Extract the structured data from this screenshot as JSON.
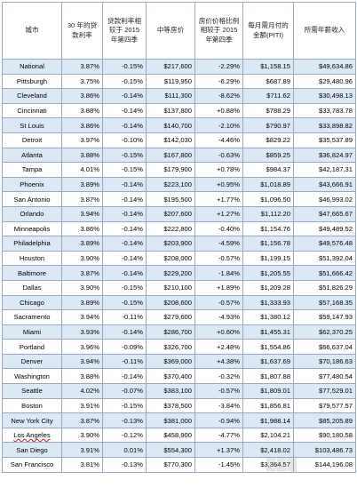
{
  "table": {
    "headers": [
      "城市",
      "30 年的贷款利率",
      "贷款利率相较于 2015 年第四季",
      "中等房价",
      "房价价格比例相较于 2015 年第四季",
      "每月需月付的金额(PITI)",
      "所需年薪收入"
    ],
    "rows": [
      [
        "National",
        "3.87%",
        "-0.15%",
        "$217,600",
        "-2.29%",
        "$1,158.15",
        "$49,634.86"
      ],
      [
        "Pittsburgh",
        "3.75%",
        "-0.15%",
        "$119,950",
        "-6.29%",
        "$687.89",
        "$29,480.96"
      ],
      [
        "Cleveland",
        "3.86%",
        "-0.14%",
        "$111,300",
        "-8.62%",
        "$711.62",
        "$30,498.13"
      ],
      [
        "Cincinnati",
        "3.88%",
        "-0.14%",
        "$137,800",
        "+0.88%",
        "$788.29",
        "$33,783.78"
      ],
      [
        "St Louis",
        "3.86%",
        "-0.14%",
        "$140,700",
        "-2.10%",
        "$790.97",
        "$33,898.82"
      ],
      [
        "Detroit",
        "3.97%",
        "-0.10%",
        "$142,030",
        "-4.46%",
        "$829.22",
        "$35,537.89"
      ],
      [
        "Atlanta",
        "3.88%",
        "-0.15%",
        "$167,800",
        "-0.63%",
        "$859.25",
        "$36,824.97"
      ],
      [
        "Tampa",
        "4.01%",
        "-0.15%",
        "$179,900",
        "+0.78%",
        "$984.37",
        "$42,187.31"
      ],
      [
        "Phoenix",
        "3.89%",
        "-0.14%",
        "$223,100",
        "+0.95%",
        "$1,018.89",
        "$43,666.91"
      ],
      [
        "San Antonio",
        "3.87%",
        "-0.14%",
        "$195,500",
        "+1.77%",
        "$1,096.50",
        "$46,993.02"
      ],
      [
        "Orlando",
        "3.94%",
        "-0.14%",
        "$207,600",
        "+1.27%",
        "$1,112.20",
        "$47,665.67"
      ],
      [
        "Minneapolis",
        "3.86%",
        "-0.14%",
        "$222,800",
        "-0.40%",
        "$1,154.76",
        "$49,489.52"
      ],
      [
        "Philadelphia",
        "3.89%",
        "-0.14%",
        "$203,900",
        "-4.59%",
        "$1,156.78",
        "$49,576.48"
      ],
      [
        "Houston",
        "3.90%",
        "-0.14%",
        "$208,000",
        "-0.57%",
        "$1,199.15",
        "$51,392.04"
      ],
      [
        "Baltimore",
        "3.87%",
        "-0.14%",
        "$229,200",
        "-1.84%",
        "$1,205.55",
        "$51,666.42"
      ],
      [
        "Dallas",
        "3.90%",
        "-0.15%",
        "$210,100",
        "+1.89%",
        "$1,209.28",
        "$51,826.29"
      ],
      [
        "Chicago",
        "3.89%",
        "-0.15%",
        "$208,600",
        "-0.57%",
        "$1,333.93",
        "$57,168.35"
      ],
      [
        "Sacramento",
        "3.94%",
        "-0.11%",
        "$279,600",
        "-4.93%",
        "$1,380.12",
        "$59,147.93"
      ],
      [
        "Miami",
        "3.93%",
        "-0.14%",
        "$286,700",
        "+0.60%",
        "$1,455.31",
        "$62,370.25"
      ],
      [
        "Portland",
        "3.96%",
        "-0.09%",
        "$326,700",
        "+2.48%",
        "$1,554.86",
        "$66,637.04"
      ],
      [
        "Denver",
        "3.94%",
        "-0.11%",
        "$369,000",
        "+4.38%",
        "$1,637.69",
        "$70,186.63"
      ],
      [
        "Washington",
        "3.88%",
        "-0.14%",
        "$370,400",
        "-0.32%",
        "$1,807.88",
        "$77,480.54"
      ],
      [
        "Seattle",
        "4.02%",
        "-0.07%",
        "$383,100",
        "-0.57%",
        "$1,809.01",
        "$77,529.01"
      ],
      [
        "Boston",
        "3.91%",
        "-0.15%",
        "$378,500",
        "-3.84%",
        "$1,856.81",
        "$79,577.57"
      ],
      [
        "New York City",
        "3.87%",
        "-0.13%",
        "$381,000",
        "-0.94%",
        "$1,988.14",
        "$85,205.89"
      ],
      [
        "Los Angeles",
        "3.90%",
        "-0.12%",
        "$458,900",
        "-4.77%",
        "$2,104.21",
        "$90,180.58"
      ],
      [
        "San Diego",
        "3.91%",
        "0.01%",
        "$554,300",
        "+1.37%",
        "$2,418.02",
        "$103,486.73"
      ],
      [
        "San Francisco",
        "3.81%",
        "-0.13%",
        "$770,300",
        "-1.45%",
        "$3,364.57",
        "$144,196.08"
      ]
    ]
  }
}
